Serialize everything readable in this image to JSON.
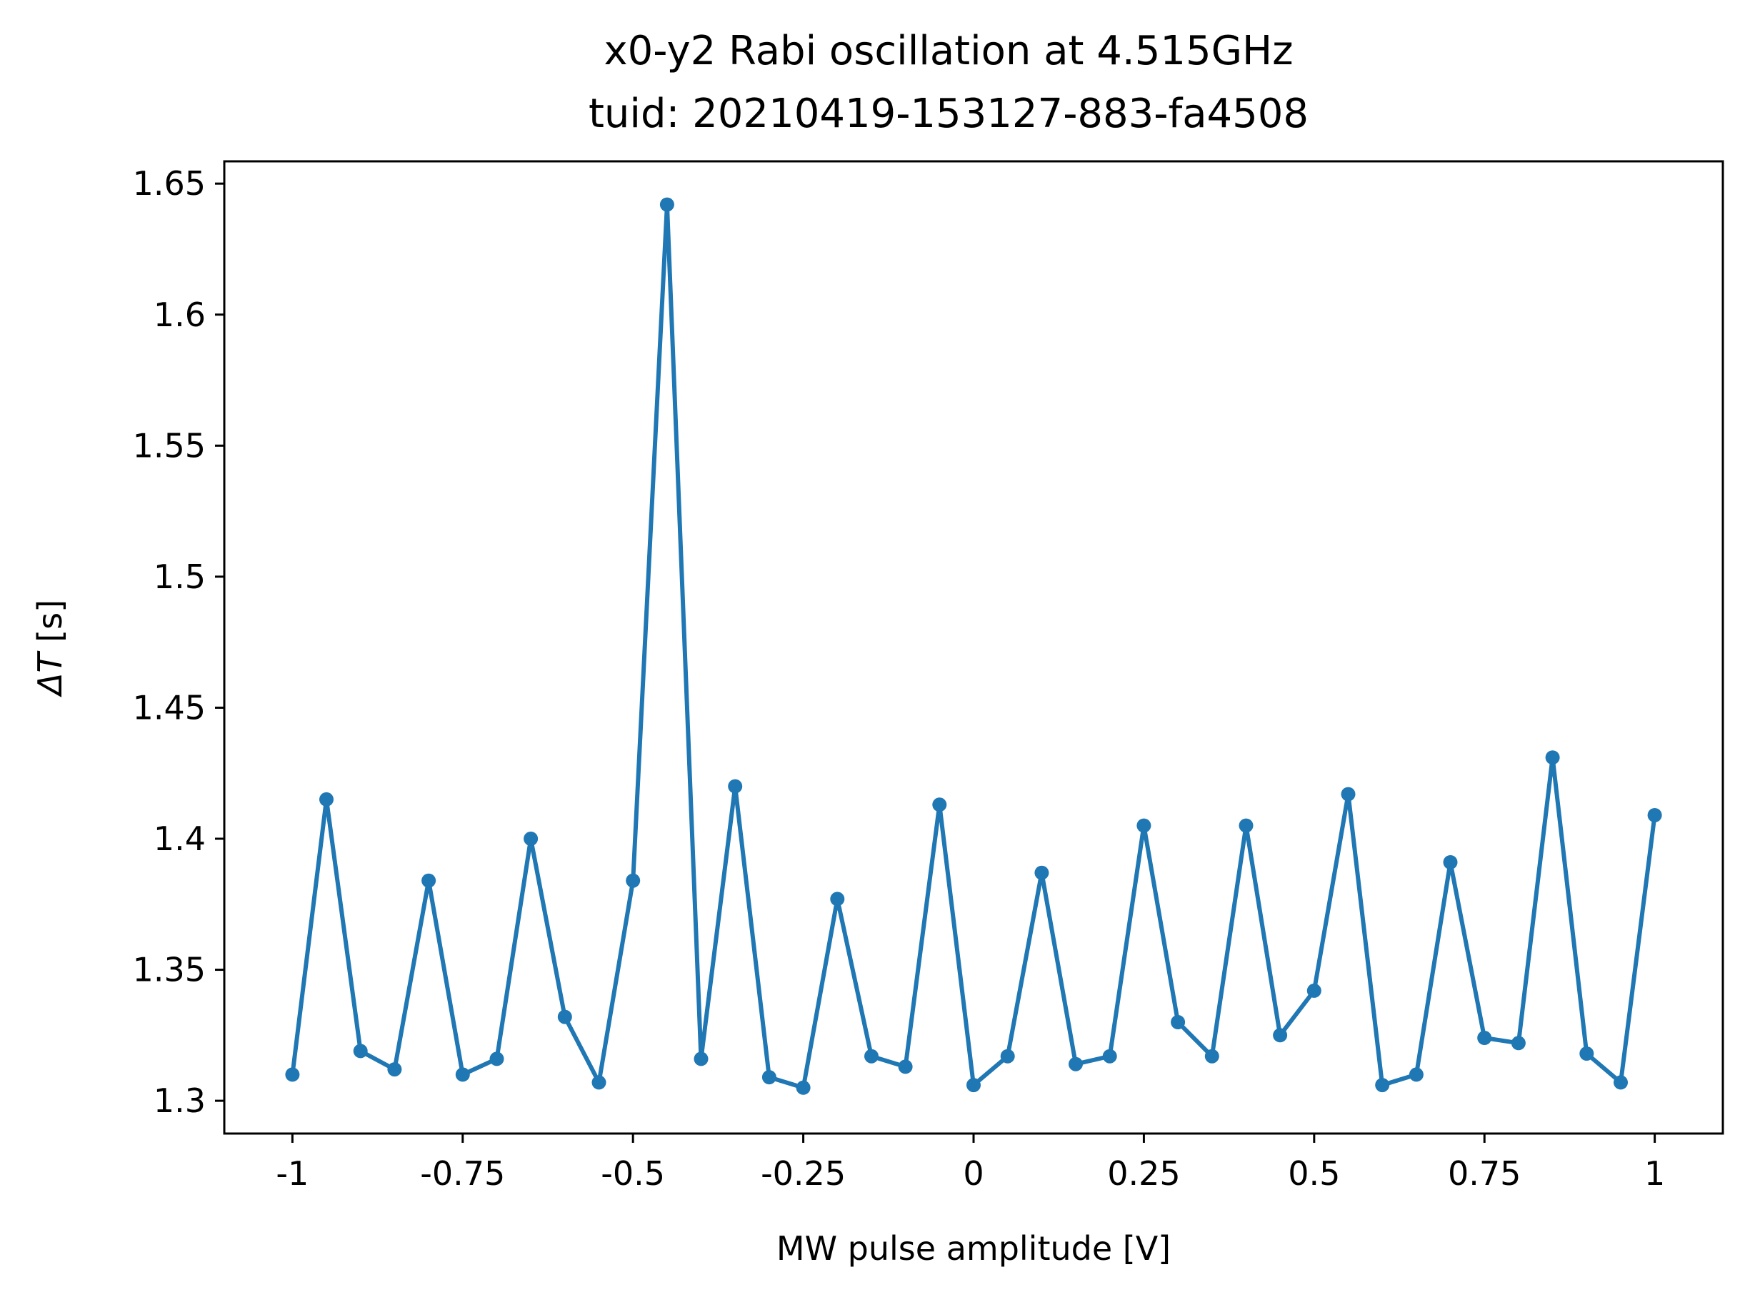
{
  "chart_data": {
    "type": "line",
    "title": "x0-y2 Rabi oscillation at 4.515GHz",
    "subtitle": "tuid: 20210419-153127-883-fa4508",
    "xlabel": "MW pulse amplitude [V]",
    "ylabel_symbol": "ΔT",
    "ylabel_unit": " [s]",
    "xlim": [
      -1.1,
      1.1
    ],
    "ylim": [
      1.2875,
      1.6585
    ],
    "grid": false,
    "marker": "circle",
    "line_color": "#1f77b4",
    "x_ticks": [
      -1,
      -0.75,
      -0.5,
      -0.25,
      0,
      0.25,
      0.5,
      0.75,
      1
    ],
    "x_tick_labels": [
      "-1",
      "-0.75",
      "-0.5",
      "-0.25",
      "0",
      "0.25",
      "0.5",
      "0.75",
      "1"
    ],
    "y_ticks": [
      1.3,
      1.35,
      1.4,
      1.45,
      1.5,
      1.55,
      1.6,
      1.65
    ],
    "y_tick_labels": [
      "1.3",
      "1.35",
      "1.4",
      "1.45",
      "1.5",
      "1.55",
      "1.6",
      "1.65"
    ],
    "x": [
      -1.0,
      -0.95,
      -0.9,
      -0.85,
      -0.8,
      -0.75,
      -0.7,
      -0.65,
      -0.6,
      -0.55,
      -0.5,
      -0.45,
      -0.4,
      -0.35,
      -0.3,
      -0.25,
      -0.2,
      -0.15,
      -0.1,
      -0.05,
      0.0,
      0.05,
      0.1,
      0.15,
      0.2,
      0.25,
      0.3,
      0.35,
      0.4,
      0.45,
      0.5,
      0.55,
      0.6,
      0.65,
      0.7,
      0.75,
      0.8,
      0.85,
      0.9,
      0.95,
      1.0
    ],
    "y": [
      1.31,
      1.415,
      1.319,
      1.312,
      1.384,
      1.31,
      1.316,
      1.4,
      1.332,
      1.307,
      1.384,
      1.642,
      1.316,
      1.42,
      1.309,
      1.305,
      1.377,
      1.317,
      1.313,
      1.413,
      1.306,
      1.317,
      1.387,
      1.314,
      1.317,
      1.405,
      1.33,
      1.317,
      1.405,
      1.325,
      1.342,
      1.417,
      1.306,
      1.31,
      1.391,
      1.324,
      1.322,
      1.431,
      1.318,
      1.307,
      1.409
    ]
  }
}
